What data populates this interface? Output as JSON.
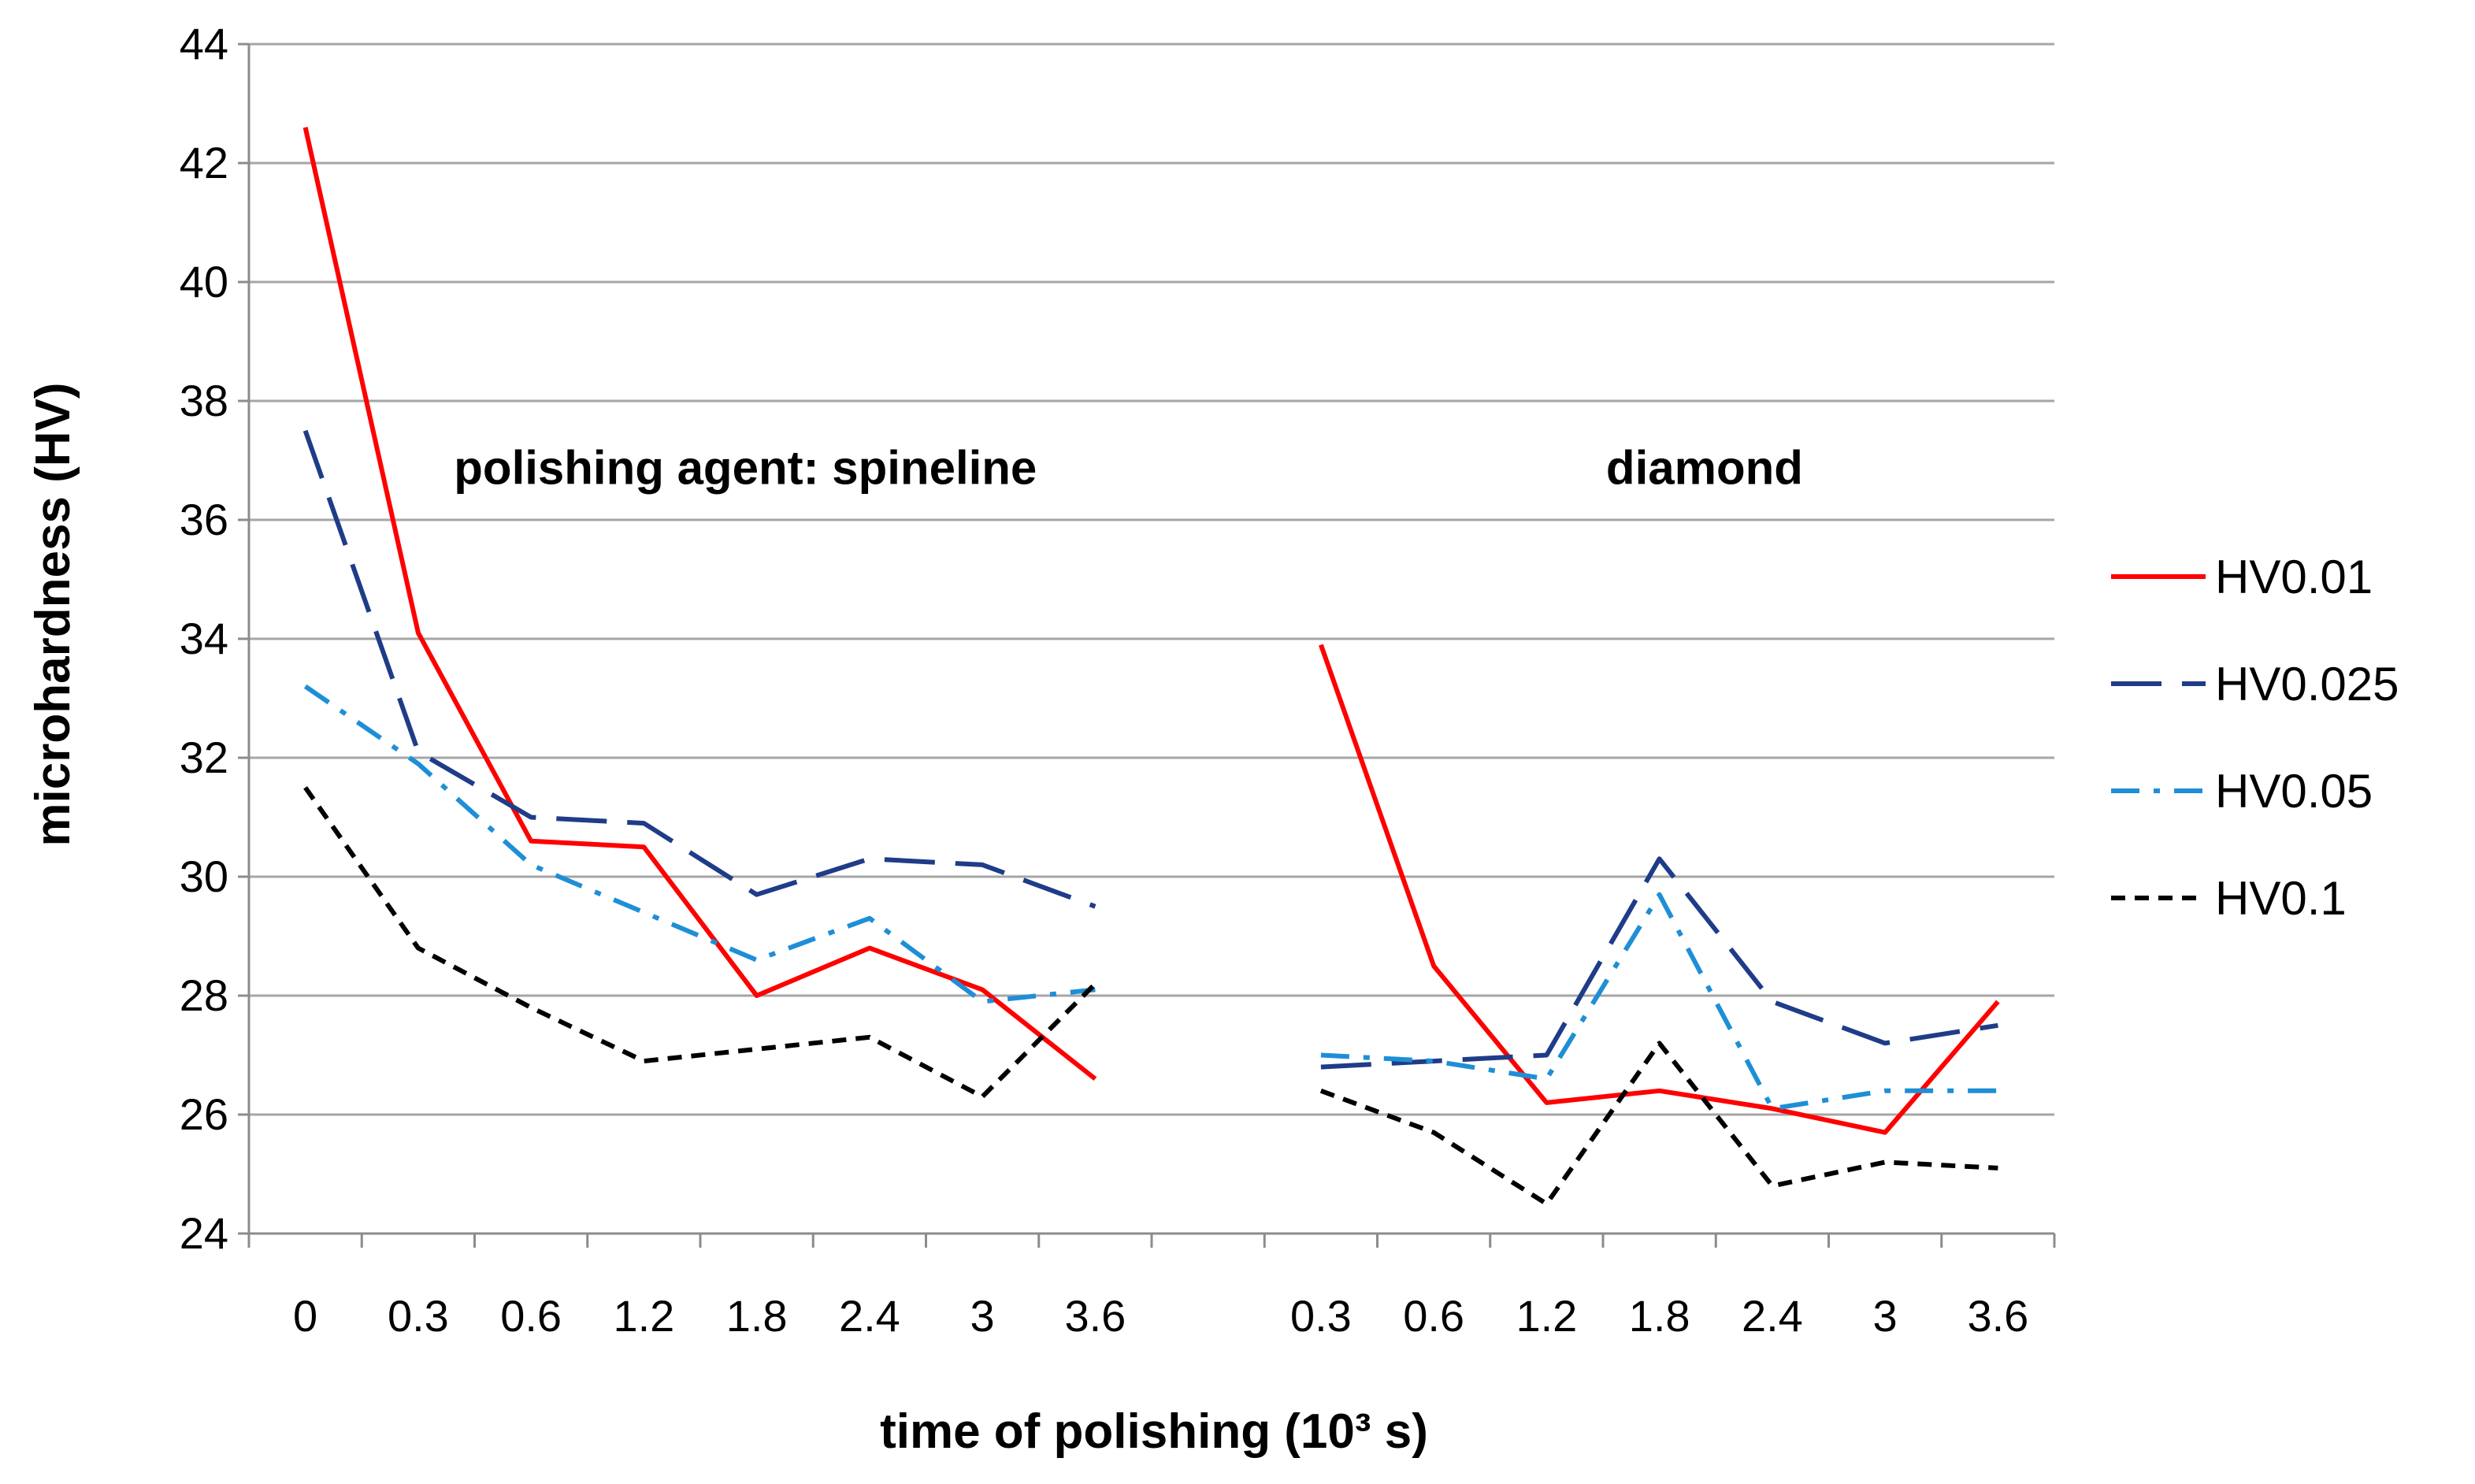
{
  "chart_data": {
    "type": "line",
    "title": "",
    "xlabel": "time of polishing (10³ s)",
    "ylabel": "microhardness (HV)",
    "ylim": [
      24,
      44
    ],
    "yticks": [
      "24",
      "26",
      "28",
      "30",
      "32",
      "34",
      "36",
      "38",
      "40",
      "42",
      "44"
    ],
    "categories": [
      "0",
      "0.3",
      "0.6",
      "1.2",
      "1.8",
      "2.4",
      "3",
      "3.6",
      "",
      "0.3",
      "0.6",
      "1.2",
      "1.8",
      "2.4",
      "3",
      "3.6"
    ],
    "grid": true,
    "legend_position": "right",
    "annotations": [
      {
        "text": "polishing agent: spineline",
        "category_index": 4.4,
        "y": 36.6
      },
      {
        "text": "diamond",
        "category_index": 12.9,
        "y": 36.6
      }
    ],
    "series": [
      {
        "name": "HV0.01",
        "color": "#ff0000",
        "dash": "solid",
        "values": [
          42.6,
          34.1,
          30.6,
          30.5,
          28.0,
          28.8,
          28.1,
          26.6,
          null,
          33.9,
          28.5,
          26.2,
          26.4,
          26.1,
          25.7,
          27.9
        ]
      },
      {
        "name": "HV0.025",
        "color": "#1f3c88",
        "dash": "long-dash",
        "values": [
          37.5,
          32.1,
          31.0,
          30.9,
          29.7,
          30.3,
          30.2,
          29.5,
          null,
          26.8,
          26.9,
          27.0,
          30.3,
          27.9,
          27.2,
          27.5
        ]
      },
      {
        "name": "HV0.05",
        "color": "#1e8fd6",
        "dash": "dash-dot",
        "values": [
          33.2,
          31.9,
          30.2,
          29.4,
          28.6,
          29.3,
          27.9,
          28.1,
          null,
          27.0,
          26.9,
          26.6,
          29.7,
          26.1,
          26.4,
          26.4
        ]
      },
      {
        "name": "HV0.1",
        "color": "#000000",
        "dash": "short-dash",
        "values": [
          31.5,
          28.8,
          27.8,
          26.9,
          27.1,
          27.3,
          26.3,
          28.2,
          null,
          26.4,
          25.7,
          24.5,
          27.2,
          24.8,
          25.2,
          25.1
        ]
      }
    ]
  }
}
